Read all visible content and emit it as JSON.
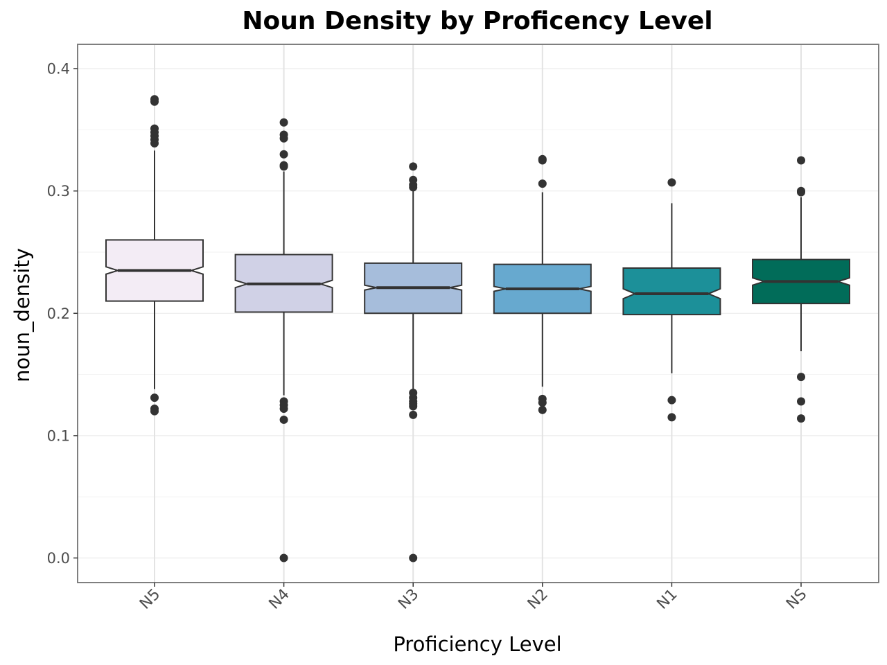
{
  "chart_data": {
    "type": "boxplot",
    "notched": true,
    "title": "Noun Density by Proficency Level",
    "xlabel": "Proficiency Level",
    "ylabel": "noun_density",
    "ylim": [
      -0.02,
      0.42
    ],
    "yticks": [
      0.0,
      0.1,
      0.2,
      0.3,
      0.4
    ],
    "ytick_labels": [
      "0.0",
      "0.1",
      "0.2",
      "0.3",
      "0.4"
    ],
    "grid": true,
    "categories": [
      "N5",
      "N4",
      "N3",
      "N2",
      "N1",
      "NS"
    ],
    "series": [
      {
        "category": "N5",
        "color": "#f3ecf5",
        "q1": 0.21,
        "median": 0.235,
        "q3": 0.26,
        "notch_low": 0.232,
        "notch_high": 0.238,
        "whisker_low": 0.138,
        "whisker_high": 0.333,
        "outliers": [
          0.375,
          0.373,
          0.351,
          0.348,
          0.345,
          0.342,
          0.339,
          0.131,
          0.122,
          0.12
        ]
      },
      {
        "category": "N4",
        "color": "#d0d1e6",
        "q1": 0.201,
        "median": 0.224,
        "q3": 0.248,
        "notch_low": 0.221,
        "notch_high": 0.227,
        "whisker_low": 0.133,
        "whisker_high": 0.316,
        "outliers": [
          0.356,
          0.346,
          0.343,
          0.33,
          0.321,
          0.32,
          0.128,
          0.125,
          0.122,
          0.113,
          0.0
        ]
      },
      {
        "category": "N3",
        "color": "#a6bddb",
        "q1": 0.2,
        "median": 0.221,
        "q3": 0.241,
        "notch_low": 0.219,
        "notch_high": 0.223,
        "whisker_low": 0.137,
        "whisker_high": 0.3,
        "outliers": [
          0.32,
          0.309,
          0.305,
          0.303,
          0.135,
          0.131,
          0.128,
          0.126,
          0.124,
          0.117,
          0.0
        ]
      },
      {
        "category": "N2",
        "color": "#67a9cf",
        "q1": 0.2,
        "median": 0.22,
        "q3": 0.24,
        "notch_low": 0.218,
        "notch_high": 0.222,
        "whisker_low": 0.14,
        "whisker_high": 0.299,
        "outliers": [
          0.326,
          0.325,
          0.306,
          0.13,
          0.127,
          0.121
        ]
      },
      {
        "category": "N1",
        "color": "#1c9099",
        "q1": 0.199,
        "median": 0.216,
        "q3": 0.237,
        "notch_low": 0.212,
        "notch_high": 0.22,
        "whisker_low": 0.151,
        "whisker_high": 0.29,
        "outliers": [
          0.307,
          0.129,
          0.115
        ]
      },
      {
        "category": "NS",
        "color": "#016c59",
        "q1": 0.208,
        "median": 0.226,
        "q3": 0.244,
        "notch_low": 0.223,
        "notch_high": 0.229,
        "whisker_low": 0.169,
        "whisker_high": 0.295,
        "outliers": [
          0.325,
          0.3,
          0.299,
          0.148,
          0.128,
          0.114
        ]
      }
    ]
  }
}
